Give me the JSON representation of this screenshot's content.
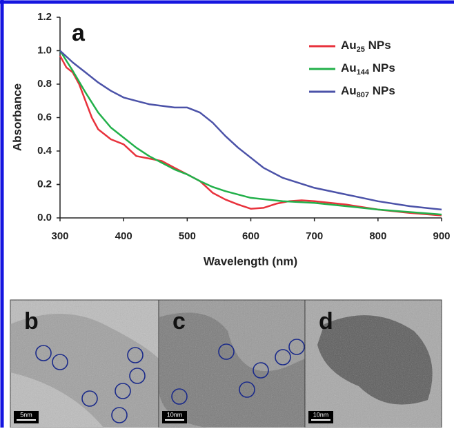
{
  "chart_data": {
    "type": "line",
    "panel_label": "a",
    "xlabel": "Wavelength (nm)",
    "ylabel": "Absorbance",
    "xlim": [
      300,
      900
    ],
    "xticks": [
      300,
      400,
      500,
      600,
      700,
      800,
      900
    ],
    "ylim": [
      0,
      1.2
    ],
    "yticks": [
      {
        "value": 0,
        "label": "0.0"
      },
      0.2,
      0.4,
      0.6,
      0.8,
      {
        "value": 1,
        "label": "1.0"
      },
      0.2,
      {
        "value": 1.2,
        "label": "1.2"
      }
    ],
    "legend": "upper right",
    "series": [
      {
        "name": "Au25 NPs",
        "color": "#e8323c",
        "x": [
          300,
          310,
          320,
          330,
          340,
          350,
          360,
          380,
          400,
          420,
          440,
          460,
          480,
          500,
          520,
          540,
          560,
          580,
          600,
          620,
          640,
          660,
          680,
          700,
          750,
          800,
          850,
          900
        ],
        "values": [
          0.97,
          0.9,
          0.87,
          0.8,
          0.7,
          0.6,
          0.53,
          0.47,
          0.44,
          0.37,
          0.355,
          0.34,
          0.3,
          0.26,
          0.22,
          0.15,
          0.11,
          0.08,
          0.055,
          0.06,
          0.085,
          0.1,
          0.105,
          0.1,
          0.08,
          0.05,
          0.03,
          0.015
        ]
      },
      {
        "name": "Au144 NPs",
        "color": "#22b04a",
        "x": [
          300,
          320,
          340,
          360,
          380,
          400,
          420,
          440,
          460,
          480,
          500,
          520,
          540,
          560,
          600,
          650,
          700,
          750,
          800,
          850,
          900
        ],
        "values": [
          1.0,
          0.88,
          0.75,
          0.63,
          0.54,
          0.48,
          0.42,
          0.37,
          0.33,
          0.29,
          0.26,
          0.22,
          0.185,
          0.16,
          0.12,
          0.1,
          0.09,
          0.07,
          0.05,
          0.035,
          0.02
        ]
      },
      {
        "name": "Au807 NPs",
        "color": "#4b52a8",
        "x": [
          300,
          320,
          340,
          360,
          380,
          400,
          420,
          440,
          460,
          480,
          500,
          520,
          540,
          560,
          580,
          600,
          620,
          650,
          700,
          750,
          800,
          850,
          900
        ],
        "values": [
          1.0,
          0.93,
          0.87,
          0.81,
          0.76,
          0.72,
          0.7,
          0.68,
          0.67,
          0.66,
          0.66,
          0.63,
          0.57,
          0.49,
          0.42,
          0.36,
          0.3,
          0.24,
          0.18,
          0.14,
          0.1,
          0.07,
          0.05
        ]
      }
    ]
  },
  "panels": [
    {
      "label": "b",
      "scale": "5nm"
    },
    {
      "label": "c",
      "scale": "10nm"
    },
    {
      "label": "d",
      "scale": "10nm"
    }
  ]
}
